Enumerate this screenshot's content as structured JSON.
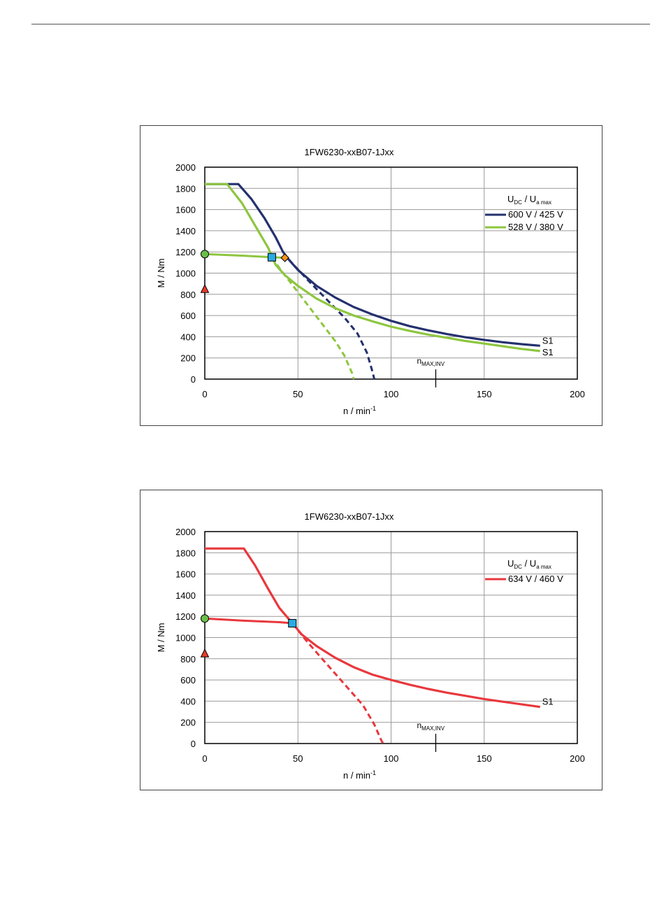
{
  "chart_data": [
    {
      "type": "line",
      "title": "1FW6230-xxB07-1Jxx",
      "xlabel": "n / min",
      "xlabel_sup": "-1",
      "ylabel": "M / Nm",
      "xlim": [
        0,
        200
      ],
      "ylim": [
        0,
        2000
      ],
      "xticks": [
        "0",
        "50",
        "100",
        "150",
        "200"
      ],
      "yticks": [
        "0",
        "200",
        "400",
        "600",
        "800",
        "1000",
        "1200",
        "1400",
        "1600",
        "1800",
        "2000"
      ],
      "grid": true,
      "legend_title": {
        "u": "U",
        "u_sub": "DC",
        "sep": "/",
        "u2": "U",
        "u2_sub": "a max"
      },
      "legend_position": "right",
      "n_max_inv": {
        "label": "n",
        "label_sub": "MAX,INV",
        "x": 124
      },
      "series": [
        {
          "name": "600 V / 425 V",
          "color": "#24306e",
          "s1_label": "S1",
          "solid": [
            [
              0,
              1840
            ],
            [
              18,
              1840
            ],
            [
              25,
              1700
            ],
            [
              32,
              1520
            ],
            [
              38,
              1340
            ],
            [
              42,
              1200
            ],
            [
              45,
              1130
            ],
            [
              50,
              1030
            ],
            [
              60,
              880
            ],
            [
              70,
              770
            ],
            [
              80,
              680
            ],
            [
              90,
              610
            ],
            [
              100,
              550
            ],
            [
              110,
              500
            ],
            [
              120,
              460
            ],
            [
              130,
              425
            ],
            [
              140,
              395
            ],
            [
              150,
              370
            ],
            [
              160,
              348
            ],
            [
              170,
              330
            ],
            [
              180,
              315
            ]
          ],
          "dashed": [
            [
              45,
              1130
            ],
            [
              55,
              940
            ],
            [
              65,
              760
            ],
            [
              75,
              580
            ],
            [
              82,
              430
            ],
            [
              87,
              250
            ],
            [
              90,
              70
            ],
            [
              91,
              0
            ]
          ],
          "dashed_start_x": 45
        },
        {
          "name": "528 V / 380 V",
          "color": "#8dc63f",
          "s1_label": "S1",
          "solid": [
            [
              0,
              1840
            ],
            [
              12,
              1840
            ],
            [
              20,
              1660
            ],
            [
              28,
              1420
            ],
            [
              34,
              1240
            ],
            [
              38,
              1080
            ],
            [
              43,
              980
            ],
            [
              50,
              880
            ],
            [
              60,
              760
            ],
            [
              70,
              670
            ],
            [
              80,
              600
            ],
            [
              90,
              545
            ],
            [
              100,
              495
            ],
            [
              110,
              455
            ],
            [
              120,
              420
            ],
            [
              130,
              390
            ],
            [
              140,
              360
            ],
            [
              150,
              335
            ],
            [
              160,
              310
            ],
            [
              170,
              285
            ],
            [
              180,
              265
            ]
          ],
          "dashed": [
            [
              36,
              1150
            ],
            [
              40,
              1050
            ],
            [
              50,
              820
            ],
            [
              60,
              590
            ],
            [
              70,
              360
            ],
            [
              75,
              220
            ],
            [
              79,
              60
            ],
            [
              80,
              0
            ]
          ],
          "dashed_start_x": 36
        }
      ],
      "markers": [
        {
          "kind": "circle",
          "x": 0,
          "y": 1180,
          "color": "#6abf4b"
        },
        {
          "kind": "triangle",
          "x": 0,
          "y": 850,
          "color": "#e83a2c"
        },
        {
          "kind": "square",
          "x": 36,
          "y": 1150,
          "color": "#29abe2"
        },
        {
          "kind": "diamond",
          "x": 43,
          "y": 1145,
          "color": "#f7941d"
        }
      ],
      "base_curve": {
        "color_series": 1,
        "points": [
          [
            0,
            1180
          ],
          [
            20,
            1165
          ],
          [
            36,
            1150
          ],
          [
            43,
            1145
          ]
        ]
      }
    },
    {
      "type": "line",
      "title": "1FW6230-xxB07-1Jxx",
      "xlabel": "n / min",
      "xlabel_sup": "-1",
      "ylabel": "M / Nm",
      "xlim": [
        0,
        200
      ],
      "ylim": [
        0,
        2000
      ],
      "xticks": [
        "0",
        "50",
        "100",
        "150",
        "200"
      ],
      "yticks": [
        "0",
        "200",
        "400",
        "600",
        "800",
        "1000",
        "1200",
        "1400",
        "1600",
        "1800",
        "2000"
      ],
      "grid": true,
      "legend_title": {
        "u": "U",
        "u_sub": "DC",
        "sep": "/",
        "u2": "U",
        "u2_sub": "a max"
      },
      "legend_position": "right",
      "n_max_inv": {
        "label": "n",
        "label_sub": "MAX,INV",
        "x": 124
      },
      "series": [
        {
          "name": "634 V / 460 V",
          "color": "#e8383d",
          "s1_label": "S1",
          "solid": [
            [
              0,
              1840
            ],
            [
              21,
              1840
            ],
            [
              27,
              1680
            ],
            [
              34,
              1460
            ],
            [
              40,
              1280
            ],
            [
              47,
              1135
            ],
            [
              52,
              1030
            ],
            [
              60,
              920
            ],
            [
              70,
              810
            ],
            [
              80,
              720
            ],
            [
              90,
              650
            ],
            [
              100,
              600
            ],
            [
              110,
              555
            ],
            [
              120,
              515
            ],
            [
              130,
              480
            ],
            [
              140,
              450
            ],
            [
              150,
              420
            ],
            [
              160,
              395
            ],
            [
              170,
              370
            ],
            [
              180,
              345
            ]
          ],
          "dashed": [
            [
              47,
              1135
            ],
            [
              55,
              960
            ],
            [
              65,
              760
            ],
            [
              75,
              560
            ],
            [
              85,
              360
            ],
            [
              91,
              180
            ],
            [
              95,
              20
            ],
            [
              96,
              0
            ]
          ],
          "dashed_start_x": 47
        }
      ],
      "markers": [
        {
          "kind": "circle",
          "x": 0,
          "y": 1180,
          "color": "#6abf4b"
        },
        {
          "kind": "triangle",
          "x": 0,
          "y": 850,
          "color": "#e83a2c"
        },
        {
          "kind": "square",
          "x": 47,
          "y": 1135,
          "color": "#29abe2"
        }
      ],
      "base_curve": {
        "color_series": 0,
        "points": [
          [
            0,
            1180
          ],
          [
            20,
            1160
          ],
          [
            40,
            1145
          ],
          [
            47,
            1135
          ]
        ]
      }
    }
  ]
}
